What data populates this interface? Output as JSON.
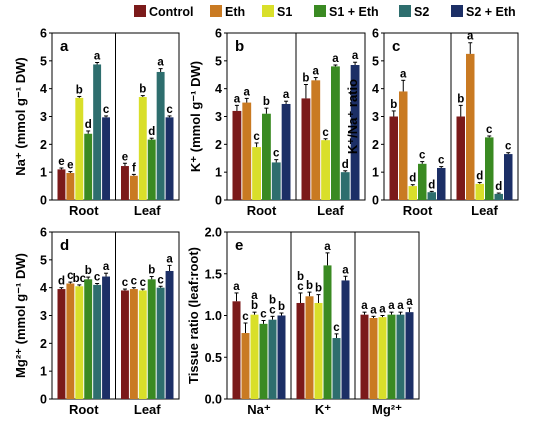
{
  "legend": {
    "items": [
      {
        "label": "Control",
        "color": "#7b1a1a"
      },
      {
        "label": "Eth",
        "color": "#c97a22"
      },
      {
        "label": "S1",
        "color": "#d9df2a"
      },
      {
        "label": "S1 + Eth",
        "color": "#3a8a22"
      },
      {
        "label": "S2",
        "color": "#2e6e6e"
      },
      {
        "label": "S2 + Eth",
        "color": "#1c2f66"
      }
    ]
  },
  "chart_data": [
    {
      "panel": "a",
      "type": "bar",
      "ylabel": "Na⁺ (mmol g⁻¹ DW)",
      "ylim": [
        0,
        6
      ],
      "yticks": [
        "0",
        "1",
        "2",
        "3",
        "4",
        "5",
        "6"
      ],
      "groups": [
        {
          "name": "Root",
          "values": [
            1.1,
            0.97,
            3.67,
            2.38,
            4.87,
            2.97
          ],
          "errors": [
            0.05,
            0.05,
            0.05,
            0.1,
            0.07,
            0.05
          ],
          "letters": [
            "e",
            "e",
            "b",
            "d",
            "a",
            "c"
          ]
        },
        {
          "name": "Leaf",
          "values": [
            1.22,
            0.87,
            3.7,
            2.17,
            4.6,
            2.97
          ],
          "errors": [
            0.1,
            0.05,
            0.05,
            0.05,
            0.12,
            0.05
          ],
          "letters": [
            "e",
            "f",
            "b",
            "d",
            "a",
            "c"
          ]
        }
      ]
    },
    {
      "panel": "b",
      "type": "bar",
      "ylabel": "K⁺ (mmol g⁻¹ DW)",
      "ylim": [
        0,
        6
      ],
      "yticks": [
        "0",
        "1",
        "2",
        "3",
        "4",
        "5",
        "6"
      ],
      "groups": [
        {
          "name": "Root",
          "values": [
            3.2,
            3.5,
            1.9,
            3.1,
            1.35,
            3.45
          ],
          "errors": [
            0.2,
            0.15,
            0.15,
            0.2,
            0.1,
            0.1
          ],
          "letters": [
            "a",
            "a",
            "c",
            "b",
            "c",
            "a"
          ]
        },
        {
          "name": "Leaf",
          "values": [
            3.65,
            4.3,
            2.15,
            4.8,
            1.0,
            4.85
          ],
          "errors": [
            0.5,
            0.1,
            0.05,
            0.05,
            0.05,
            0.1
          ],
          "letters": [
            "b",
            "a",
            "c",
            "a",
            "d",
            "a"
          ]
        }
      ]
    },
    {
      "panel": "c",
      "type": "bar",
      "ylabel": "K⁺/Na⁺ ratio",
      "ylim": [
        0,
        6
      ],
      "yticks": [
        "0",
        "1",
        "2",
        "3",
        "4",
        "5",
        "6"
      ],
      "groups": [
        {
          "name": "Root",
          "values": [
            3.0,
            3.9,
            0.5,
            1.3,
            0.28,
            1.15
          ],
          "errors": [
            0.2,
            0.4,
            0.05,
            0.08,
            0.03,
            0.05
          ],
          "letters": [
            "b",
            "a",
            "d",
            "c",
            "d",
            "c"
          ]
        },
        {
          "name": "Leaf",
          "values": [
            3.0,
            5.25,
            0.58,
            2.25,
            0.22,
            1.65
          ],
          "errors": [
            0.4,
            0.4,
            0.05,
            0.05,
            0.03,
            0.05
          ],
          "letters": [
            "b",
            "a",
            "d",
            "c",
            "d",
            "c"
          ]
        }
      ]
    },
    {
      "panel": "d",
      "type": "bar",
      "ylabel": "Mg²⁺ (mmol g⁻¹ DW)",
      "ylim": [
        0,
        6
      ],
      "yticks": [
        "0",
        "1",
        "2",
        "3",
        "4",
        "5",
        "6"
      ],
      "groups": [
        {
          "name": "Root",
          "values": [
            3.95,
            4.15,
            4.05,
            4.3,
            4.1,
            4.4
          ],
          "errors": [
            0.05,
            0.05,
            0.05,
            0.08,
            0.05,
            0.12
          ],
          "letters": [
            "d",
            "c",
            "bc",
            "b",
            "c",
            "a"
          ]
        },
        {
          "name": "Leaf",
          "values": [
            3.9,
            3.95,
            3.9,
            4.3,
            4.0,
            4.6
          ],
          "errors": [
            0.05,
            0.05,
            0.05,
            0.1,
            0.05,
            0.2
          ],
          "letters": [
            "c",
            "c",
            "c",
            "b",
            "c",
            "a"
          ]
        }
      ]
    },
    {
      "panel": "e",
      "type": "bar",
      "ylabel": "Tissue ratio (leaf:root)",
      "ylim": [
        0,
        2
      ],
      "yticks": [
        "0.0",
        "0.5",
        "1.0",
        "1.5",
        "2.0"
      ],
      "groups": [
        {
          "name": "Na⁺",
          "values": [
            1.17,
            0.79,
            1.01,
            0.9,
            0.95,
            1.0
          ],
          "errors": [
            0.1,
            0.12,
            0.03,
            0.04,
            0.04,
            0.03
          ],
          "letters": [
            "a",
            "c",
            "ab",
            "c",
            "bc",
            "b"
          ]
        },
        {
          "name": "K⁺",
          "values": [
            1.15,
            1.23,
            1.15,
            1.6,
            0.73,
            1.42
          ],
          "errors": [
            0.12,
            0.05,
            0.1,
            0.15,
            0.05,
            0.05
          ],
          "letters": [
            "bc",
            "b",
            "b",
            "a",
            "c",
            "a"
          ]
        },
        {
          "name": "Mg²⁺",
          "values": [
            1.01,
            0.97,
            0.98,
            1.01,
            1.01,
            1.04
          ],
          "errors": [
            0.03,
            0.02,
            0.02,
            0.03,
            0.03,
            0.05
          ],
          "letters": [
            "a",
            "a",
            "a",
            "a",
            "a",
            "a"
          ]
        }
      ]
    }
  ]
}
